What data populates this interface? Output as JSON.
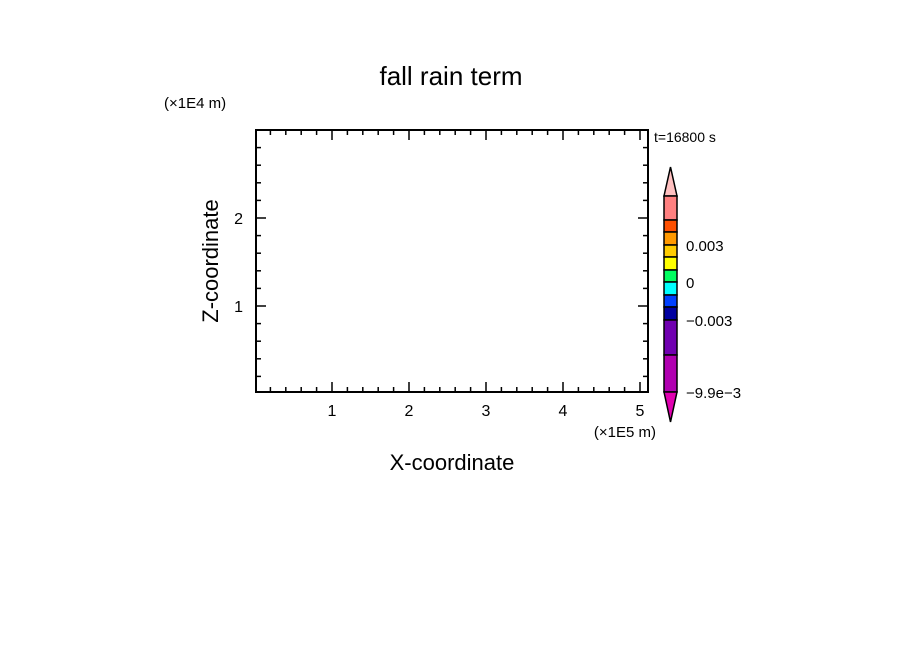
{
  "chart_data": {
    "type": "heatmap",
    "title": "fall rain term",
    "xlabel": "X-coordinate",
    "ylabel": "Z-coordinate",
    "x_scale_label": "(×1E5 m)",
    "y_scale_label": "(×1E4 m)",
    "time_label": "t=16800 s",
    "xlim": [
      0,
      5.1
    ],
    "ylim": [
      0,
      2.98
    ],
    "x_ticks": [
      1,
      2,
      3,
      4,
      5
    ],
    "x_tick_labels": [
      "1",
      "2",
      "3",
      "4",
      "5"
    ],
    "y_ticks": [
      1,
      2
    ],
    "y_tick_labels": [
      "1",
      "2"
    ],
    "minor_tick_step": 0.2,
    "grid": false,
    "data": [],
    "colorbar": {
      "top_extend_color": "#ffc0c0",
      "bottom_extend_color": "#e000b0",
      "segments": [
        {
          "color": "#ff8080"
        },
        {
          "color": "#ff5000"
        },
        {
          "color": "#ff9900"
        },
        {
          "color": "#ffcc00"
        },
        {
          "color": "#ffff00"
        },
        {
          "color": "#00ff60"
        },
        {
          "color": "#00ffff"
        },
        {
          "color": "#0040ff"
        },
        {
          "color": "#0000a0"
        },
        {
          "color": "#7000b0"
        },
        {
          "color": "#b000b0"
        }
      ],
      "labels": [
        {
          "text": "0.003",
          "boundary_index": 3
        },
        {
          "text": "0",
          "boundary_index": 6
        },
        {
          "text": "−0.003",
          "boundary_index": 9
        },
        {
          "text": "−9.9e−3",
          "boundary_index": 11
        }
      ]
    }
  }
}
